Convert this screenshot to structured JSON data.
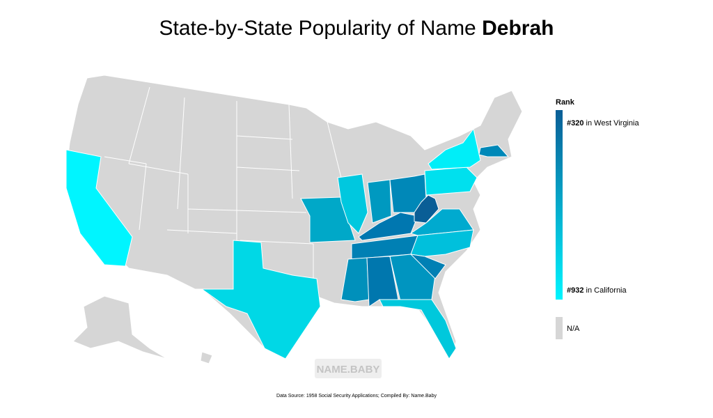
{
  "header": {
    "title": "State-by-State Popularity of Name ",
    "name": "Debrah"
  },
  "legend": {
    "title": "Rank",
    "top": {
      "rank": "#320",
      "text": " in West Virginia",
      "color": "#0a5e96"
    },
    "bottom": {
      "rank": "#932",
      "text": " in California",
      "color": "#00f5ff"
    },
    "na": {
      "label": "N/A",
      "color": "#d6d6d6"
    }
  },
  "watermark": "NAME.BABY",
  "source": "Data Source: 1958 Social Security Applications; Compiled By: Name.Baby"
}
